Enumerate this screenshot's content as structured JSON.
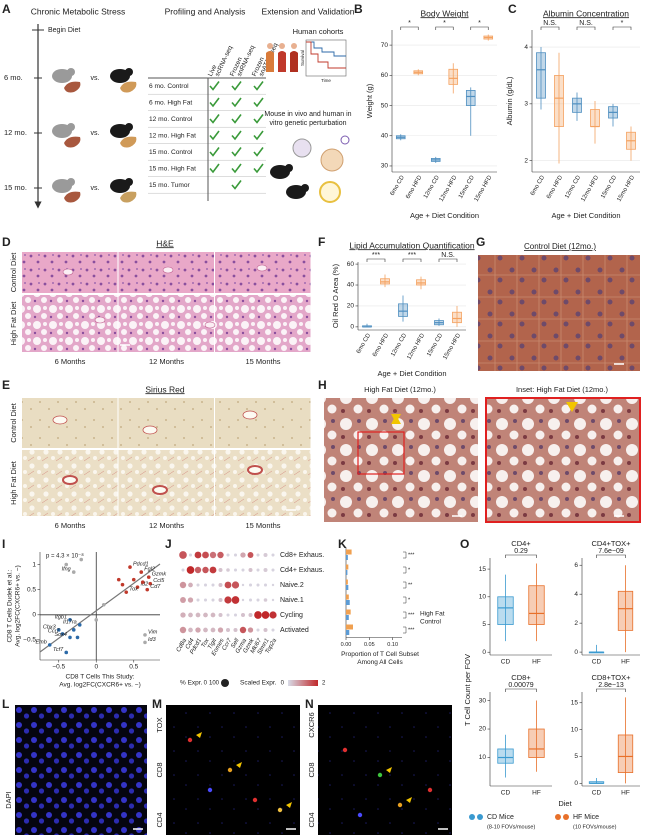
{
  "panel_labels": [
    "A",
    "B",
    "C",
    "D",
    "E",
    "F",
    "G",
    "H",
    "I",
    "J",
    "K",
    "L",
    "M",
    "N",
    "O"
  ],
  "panel_a": {
    "title_left": "Chronic Metabolic Stress",
    "begin": "Begin Diet",
    "timepoints": [
      "6 mo.",
      "12 mo.",
      "15 mo."
    ],
    "vs": "vs.",
    "title_mid": "Profiling and Analysis",
    "columns": [
      [
        "Live",
        "scRNA-seq"
      ],
      [
        "Frozen",
        "snRNA-seq"
      ],
      [
        "Frozen",
        "snATAC-seq"
      ]
    ],
    "check_color": "#3a9a3a",
    "rows": [
      {
        "label": "6 mo. Control",
        "color": "#5b9bd5",
        "checks": [
          true,
          true,
          true
        ]
      },
      {
        "label": "6 mo. High Fat",
        "color": "#f0a050",
        "checks": [
          true,
          true,
          true
        ]
      },
      {
        "label": "12 mo. Control",
        "color": "#5b9bd5",
        "checks": [
          true,
          true,
          true
        ]
      },
      {
        "label": "12 mo. High Fat",
        "color": "#f0a050",
        "checks": [
          true,
          true,
          true
        ]
      },
      {
        "label": "15 mo. Control",
        "color": "#5b9bd5",
        "checks": [
          true,
          true,
          true
        ]
      },
      {
        "label": "15 mo. High Fat",
        "color": "#f0a050",
        "checks": [
          true,
          true,
          true
        ]
      },
      {
        "label": "15 mo. Tumor",
        "color": "#7b3f8f",
        "checks": [
          false,
          true,
          false
        ]
      }
    ],
    "title_right": "Extension and Validation",
    "human": "Human cohorts",
    "survival": "Survival",
    "time": "Time",
    "mouse": [
      "Mouse in vivo and human in",
      "vitro genetic perturbation"
    ]
  },
  "panels": {
    "D": {
      "title": "H&E",
      "rows": [
        "Control Diet",
        "High Fat Diet"
      ],
      "cols": [
        "6 Months",
        "12 Months",
        "15 Months"
      ]
    },
    "E": {
      "title": "Sirius Red",
      "rows": [
        "Control Diet",
        "High Fat Diet"
      ],
      "cols": [
        "6 Months",
        "12 Months",
        "15 Months"
      ]
    },
    "G": {
      "title": "Control Diet (12mo.)"
    },
    "H": {
      "titles": [
        "High Fat Diet (12mo.)",
        "Inset: High Fat Diet (12mo.)"
      ]
    },
    "L": {
      "channels": [
        "DAPI"
      ],
      "colors": [
        "#4a4aff"
      ]
    },
    "M": {
      "channels": [
        "TOX",
        "CD8",
        "CD4"
      ],
      "colors": [
        "#3ec43e",
        "#e03030",
        "#4a4aff"
      ]
    },
    "N": {
      "channels": [
        "CXCR6",
        "CD8",
        "CD4"
      ],
      "colors": [
        "#3ec43e",
        "#e03030",
        "#4a4aff"
      ]
    }
  },
  "panel_o": {
    "ylabel": "T Cell Count per FOV",
    "xlabel": "Diet",
    "legend": [
      {
        "name": "CD Mice",
        "note": "(8-10 FOVs/mouse)",
        "color": "#3a9ad0"
      },
      {
        "name": "HF Mice",
        "note": "(10 FOVs/mouse)",
        "color": "#e8702a"
      }
    ]
  },
  "chart_data": [
    {
      "type": "box",
      "title": "Body Weight",
      "ylabel": "Weight (g)",
      "xlabel": "Age + Diet Condition",
      "categories": [
        "6mo CD",
        "6mo HFD",
        "12mo CD",
        "12mo HFD",
        "15mo CD",
        "15mo HFD"
      ],
      "colors": [
        "#4f8fc0",
        "#f4a261",
        "#4f8fc0",
        "#f4a261",
        "#4f8fc0",
        "#f4a261"
      ],
      "boxes": [
        [
          38.5,
          39,
          39.5,
          40,
          40.5
        ],
        [
          60,
          60.5,
          61,
          61.5,
          62
        ],
        [
          31,
          31.5,
          32,
          32.5,
          33
        ],
        [
          54,
          57,
          59,
          62,
          64
        ],
        [
          40,
          50,
          53,
          55,
          56
        ],
        [
          71.5,
          72,
          72.5,
          73,
          73.5
        ]
      ],
      "ylim": [
        28,
        75
      ],
      "yticks": [
        30,
        40,
        50,
        60,
        70
      ],
      "grid": true,
      "significance": [
        "*",
        "*",
        "*"
      ]
    },
    {
      "type": "box",
      "title": "Albumin Concentration",
      "ylabel": "Albumin (g/dL)",
      "xlabel": "Age + Diet Condition",
      "categories": [
        "6mo CD",
        "6mo HFD",
        "12mo CD",
        "12mo HFD",
        "15mo CD",
        "15mo HFD"
      ],
      "colors": [
        "#4f8fc0",
        "#f4a261",
        "#4f8fc0",
        "#f4a261",
        "#4f8fc0",
        "#f4a261"
      ],
      "boxes": [
        [
          2.9,
          3.1,
          3.6,
          3.9,
          4.0
        ],
        [
          1.95,
          2.6,
          3.1,
          3.5,
          3.9
        ],
        [
          2.7,
          2.85,
          3.0,
          3.1,
          3.2
        ],
        [
          2.3,
          2.6,
          2.6,
          2.9,
          3.05
        ],
        [
          2.6,
          2.75,
          2.85,
          2.95,
          3.0
        ],
        [
          2.0,
          2.2,
          2.35,
          2.5,
          2.6
        ]
      ],
      "ylim": [
        1.8,
        4.3
      ],
      "yticks": [
        2,
        3,
        4
      ],
      "grid": true,
      "significance": [
        "N.S.",
        "N.S.",
        "*"
      ]
    },
    {
      "type": "box",
      "title": "Lipid Accumulation Quantification",
      "ylabel": "Oil Red O Area (%)",
      "xlabel": "Age + Diet Condition",
      "categories": [
        "6mo CD",
        "6mo HFD",
        "12mo CD",
        "12mo HFD",
        "15mo CD",
        "15mo HFD"
      ],
      "colors": [
        "#4f8fc0",
        "#f4a261",
        "#4f8fc0",
        "#f4a261",
        "#4f8fc0",
        "#f4a261"
      ],
      "boxes": [
        [
          0,
          0,
          0,
          1,
          3
        ],
        [
          38,
          41,
          43,
          46,
          50
        ],
        [
          5,
          10,
          15,
          22,
          30
        ],
        [
          36,
          40,
          42,
          45,
          48
        ],
        [
          1,
          2,
          4,
          6,
          8
        ],
        [
          0,
          4,
          8,
          14,
          20
        ]
      ],
      "ylim": [
        -3,
        62
      ],
      "yticks": [
        0,
        20,
        40,
        60
      ],
      "grid": true,
      "significance": [
        "***",
        "***",
        "N.S."
      ]
    },
    {
      "type": "box",
      "title": "CD4+",
      "categories": [
        "CD",
        "HF"
      ],
      "colors": [
        "#3a9ad0",
        "#e8702a"
      ],
      "boxes": [
        [
          2,
          5,
          8,
          10,
          14
        ],
        [
          2,
          5,
          7,
          12,
          16
        ]
      ],
      "ylim": [
        -0.5,
        17
      ],
      "yticks": [
        0,
        5,
        10,
        15
      ],
      "grid": false,
      "significance": [
        "0.29"
      ]
    },
    {
      "type": "box",
      "title": "CD4+TOX+",
      "categories": [
        "CD",
        "HF"
      ],
      "colors": [
        "#3a9ad0",
        "#e8702a"
      ],
      "boxes": [
        [
          0,
          0,
          0,
          0,
          0.5
        ],
        [
          0,
          1.5,
          3,
          4.2,
          6
        ]
      ],
      "ylim": [
        -0.2,
        6.5
      ],
      "yticks": [
        0,
        2,
        4,
        6
      ],
      "grid": false,
      "significance": [
        "7.6e−09"
      ]
    },
    {
      "type": "box",
      "title": "CD8+",
      "categories": [
        "CD",
        "HF"
      ],
      "colors": [
        "#3a9ad0",
        "#e8702a"
      ],
      "boxes": [
        [
          3,
          8,
          10,
          13,
          18
        ],
        [
          5,
          10,
          13,
          20,
          30
        ]
      ],
      "ylim": [
        0,
        33
      ],
      "yticks": [
        10,
        20,
        30
      ],
      "grid": false,
      "significance": [
        "0.00079"
      ]
    },
    {
      "type": "box",
      "title": "CD8+TOX+",
      "categories": [
        "CD",
        "HF"
      ],
      "colors": [
        "#3a9ad0",
        "#e8702a"
      ],
      "boxes": [
        [
          0,
          0,
          0,
          0.3,
          1
        ],
        [
          0,
          2,
          5,
          9,
          16
        ]
      ],
      "ylim": [
        -0.5,
        17
      ],
      "yticks": [
        0,
        5,
        10,
        15
      ],
      "grid": false,
      "significance": [
        "2.8e−13"
      ]
    },
    {
      "type": "scatter",
      "annotation": "p = 4.3 × 10⁻⁸",
      "xlabel": [
        "CD8 T Cells This Study:",
        "Avg. log2FC(CXCR6+ vs. −)"
      ],
      "ylabel": [
        "CD8 T Cells Dudek et al.:",
        "Avg. log2FC(CXCR6+ vs. −)"
      ],
      "xlim": [
        -0.75,
        0.85
      ],
      "ylim": [
        -0.9,
        1.25
      ],
      "xticks": [
        {
          "value": -0.5,
          "label": "−0.5"
        },
        0,
        0.5
      ],
      "yticks": [
        {
          "value": -0.5,
          "label": "−0.5"
        },
        0,
        0.5,
        1
      ],
      "series": [
        {
          "color": "#c0392b",
          "x": [
            0.45,
            0.6,
            0.7,
            0.72,
            0.55,
            0.68,
            0.4,
            0.3,
            0.5,
            0.62,
            0.35
          ],
          "values": [
            0.95,
            0.85,
            0.75,
            0.62,
            0.55,
            0.5,
            0.45,
            0.7,
            0.7,
            0.65,
            0.6
          ],
          "labels": [
            "Pdcd1",
            "Fgl2",
            "Gzmk",
            "Ccl5",
            "Id2",
            "Cd7",
            "Tox",
            null,
            null,
            null,
            null
          ]
        },
        {
          "color": "#2c6aa8",
          "x": [
            -0.35,
            -0.22,
            -0.5,
            -0.45,
            -0.35,
            -0.4,
            -0.62,
            -0.3,
            -0.25
          ],
          "values": [
            -0.1,
            -0.2,
            -0.3,
            -0.38,
            -0.45,
            -0.75,
            -0.6,
            -0.3,
            -0.45
          ],
          "labels": [
            "Itgb1",
            "Il17ra",
            "Cbx3",
            "Ccr7",
            "Sox4",
            "Tcf7",
            "Emb",
            null,
            null
          ]
        },
        {
          "color": "#aaaaaa",
          "x": [
            -0.3,
            0.65,
            0.65,
            -0.4,
            -0.2,
            0.1,
            0.0
          ],
          "values": [
            0.85,
            -0.4,
            -0.55,
            1.0,
            1.1,
            0.2,
            -0.1
          ],
          "labels": [
            "Ifng",
            "Vim",
            "Id3",
            null,
            null,
            null,
            null
          ]
        }
      ]
    },
    {
      "type": "dot",
      "genes": [
        "Cd8a",
        "Cd4",
        "Pdcd1",
        "Tox",
        "Tigit",
        "Eomes",
        "Ccr7",
        "Sell",
        "Gzma",
        "Gzmk",
        "Mki67",
        "Stmn1",
        "Top2a"
      ],
      "rows": [
        "Cd8+ Exhaus.",
        "Cd4+ Exhaus.",
        "Naive.2",
        "Naive.1",
        "Cycling",
        "Activated"
      ],
      "pct": [
        [
          90,
          10,
          70,
          70,
          60,
          60,
          10,
          10,
          40,
          50,
          10,
          20,
          10
        ],
        [
          10,
          90,
          60,
          60,
          70,
          20,
          15,
          10,
          10,
          20,
          10,
          20,
          10
        ],
        [
          60,
          30,
          10,
          10,
          10,
          20,
          70,
          80,
          5,
          10,
          10,
          10,
          5
        ],
        [
          50,
          40,
          10,
          10,
          10,
          20,
          80,
          90,
          5,
          10,
          10,
          15,
          5
        ],
        [
          40,
          30,
          30,
          30,
          30,
          20,
          10,
          10,
          20,
          20,
          90,
          90,
          80
        ],
        [
          60,
          30,
          40,
          30,
          30,
          40,
          20,
          20,
          60,
          40,
          10,
          20,
          10
        ]
      ],
      "expr": [
        [
          1.5,
          0.1,
          1.8,
          1.6,
          1.2,
          1.4,
          0.1,
          0.1,
          0.6,
          1.5,
          0.1,
          0.2,
          0.1
        ],
        [
          0.1,
          2,
          1.4,
          1.5,
          1.8,
          0.3,
          0.2,
          0.1,
          0.1,
          0.3,
          0.1,
          0.2,
          0.1
        ],
        [
          0.8,
          0.5,
          0.1,
          0.1,
          0.1,
          0.3,
          1.6,
          1.5,
          0.1,
          0.1,
          0.1,
          0.1,
          0.1
        ],
        [
          0.7,
          0.6,
          0.1,
          0.1,
          0.1,
          0.3,
          1.8,
          1.9,
          0.1,
          0.1,
          0.1,
          0.2,
          0.1
        ],
        [
          0.5,
          0.4,
          0.4,
          0.4,
          0.4,
          0.3,
          0.1,
          0.1,
          0.3,
          0.3,
          2,
          2,
          1.9
        ],
        [
          0.8,
          0.4,
          0.6,
          0.4,
          0.4,
          0.6,
          0.3,
          0.3,
          1.5,
          0.8,
          0.1,
          0.3,
          0.1
        ]
      ],
      "size_title": "% Expr.",
      "size_ticks": [
        0,
        100
      ],
      "color_title": "Scaled Expr.",
      "color_ticks": [
        0,
        2
      ],
      "color_range": [
        "#d8dce8",
        "#c0282a"
      ]
    },
    {
      "type": "hbar",
      "xlabel": [
        "Proportion of T Cell Subset",
        "Among All Cells"
      ],
      "categories": [
        "Cd8+ Exhaus.",
        "Cd4+ Exhaus.",
        "Naive.2",
        "Naive.1",
        "Cycling",
        "Activated"
      ],
      "series": [
        {
          "name": "High Fat",
          "color": "#f0a050",
          "values": [
            0.012,
            0.005,
            0.004,
            0.006,
            0.01,
            0.015
          ]
        },
        {
          "name": "Control",
          "color": "#5b9bd5",
          "values": [
            0.004,
            0.003,
            0.005,
            0.008,
            0.006,
            0.007
          ]
        }
      ],
      "xlim": [
        0,
        0.12
      ],
      "xticks": [
        {
          "value": 0,
          "label": "0.00"
        },
        {
          "value": 0.05,
          "label": "0.05"
        },
        {
          "value": 0.1,
          "label": "0.10"
        }
      ],
      "significance": [
        "***",
        "*",
        "**",
        "*",
        "***",
        "***"
      ]
    }
  ]
}
